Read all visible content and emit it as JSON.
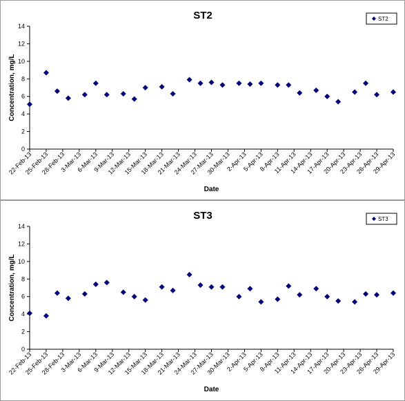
{
  "chart_data": [
    {
      "type": "scatter",
      "title": "ST2",
      "xlabel": "Date",
      "ylabel": "Concentration, mg/L",
      "ylim": [
        0,
        14
      ],
      "y_ticks": [
        "0",
        "2",
        "4",
        "6",
        "8",
        "10",
        "12",
        "14"
      ],
      "x_ticks": [
        "22-Feb-13",
        "25-Feb-13",
        "28-Feb-13",
        "3-Mar-13",
        "6-Mar-13",
        "9-Mar-13",
        "12-Mar-13",
        "15-Mar-13",
        "18-Mar-13",
        "21-Mar-13",
        "24-Mar-13",
        "27-Mar-13",
        "30-Mar-13",
        "2-Apr-13",
        "5-Apr-13",
        "8-Apr-13",
        "11-Apr-13",
        "14-Apr-13",
        "17-Apr-13",
        "20-Apr-13",
        "23-Apr-13",
        "26-Apr-13",
        "29-Apr-13"
      ],
      "grid": false,
      "legend_position": "top-right",
      "marker_color": "#000080",
      "series": [
        {
          "name": "ST2",
          "x": [
            "22-Feb-13",
            "25-Feb-13",
            "27-Feb-13",
            "1-Mar-13",
            "4-Mar-13",
            "6-Mar-13",
            "8-Mar-13",
            "11-Mar-13",
            "13-Mar-13",
            "15-Mar-13",
            "18-Mar-13",
            "20-Mar-13",
            "23-Mar-13",
            "25-Mar-13",
            "27-Mar-13",
            "29-Mar-13",
            "1-Apr-13",
            "3-Apr-13",
            "5-Apr-13",
            "8-Apr-13",
            "10-Apr-13",
            "12-Apr-13",
            "15-Apr-13",
            "17-Apr-13",
            "19-Apr-13",
            "22-Apr-13",
            "24-Apr-13",
            "26-Apr-13",
            "29-Apr-13"
          ],
          "y": [
            5.1,
            8.7,
            6.6,
            5.8,
            6.2,
            7.5,
            6.2,
            6.3,
            5.7,
            7.0,
            7.1,
            6.3,
            7.9,
            7.5,
            7.6,
            7.3,
            7.5,
            7.4,
            7.5,
            7.3,
            7.3,
            6.4,
            6.7,
            6.0,
            5.4,
            6.5,
            7.5,
            6.2,
            6.5
          ]
        }
      ]
    },
    {
      "type": "scatter",
      "title": "ST3",
      "xlabel": "Date",
      "ylabel": "Concentration, mg/L",
      "ylim": [
        0,
        14
      ],
      "y_ticks": [
        "0",
        "2",
        "4",
        "6",
        "8",
        "10",
        "12",
        "14"
      ],
      "x_ticks": [
        "22-Feb-13",
        "25-Feb-13",
        "28-Feb-13",
        "3-Mar-13",
        "6-Mar-13",
        "9-Mar-13",
        "12-Mar-13",
        "15-Mar-13",
        "18-Mar-13",
        "21-Mar-13",
        "24-Mar-13",
        "27-Mar-13",
        "30-Mar-13",
        "2-Apr-13",
        "5-Apr-13",
        "8-Apr-13",
        "11-Apr-13",
        "14-Apr-13",
        "17-Apr-13",
        "20-Apr-13",
        "23-Apr-13",
        "26-Apr-13",
        "29-Apr-13"
      ],
      "grid": false,
      "legend_position": "top-right",
      "marker_color": "#000080",
      "series": [
        {
          "name": "ST3",
          "x": [
            "22-Feb-13",
            "25-Feb-13",
            "27-Feb-13",
            "1-Mar-13",
            "4-Mar-13",
            "6-Mar-13",
            "8-Mar-13",
            "11-Mar-13",
            "13-Mar-13",
            "15-Mar-13",
            "18-Mar-13",
            "20-Mar-13",
            "23-Mar-13",
            "25-Mar-13",
            "27-Mar-13",
            "29-Mar-13",
            "1-Apr-13",
            "3-Apr-13",
            "5-Apr-13",
            "8-Apr-13",
            "10-Apr-13",
            "12-Apr-13",
            "15-Apr-13",
            "17-Apr-13",
            "19-Apr-13",
            "22-Apr-13",
            "24-Apr-13",
            "26-Apr-13",
            "29-Apr-13"
          ],
          "y": [
            4.1,
            3.8,
            6.4,
            5.8,
            6.3,
            7.4,
            7.6,
            6.5,
            6.0,
            5.6,
            7.1,
            6.7,
            8.5,
            7.3,
            7.1,
            7.1,
            6.0,
            6.9,
            5.4,
            5.7,
            7.2,
            6.2,
            6.9,
            6.0,
            5.5,
            5.4,
            6.3,
            6.2,
            6.4
          ]
        }
      ]
    }
  ]
}
